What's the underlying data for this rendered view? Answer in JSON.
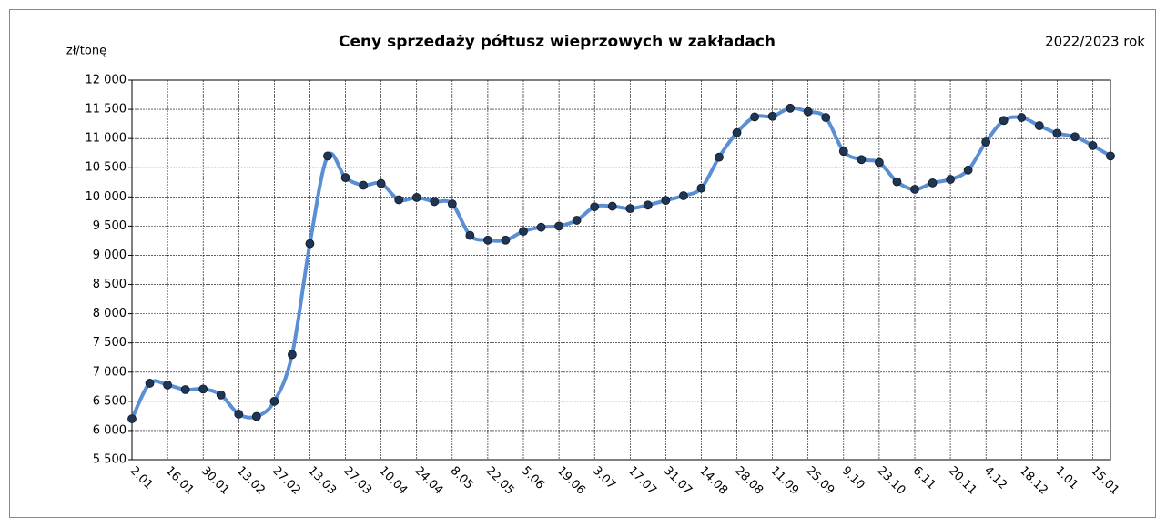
{
  "chart_data": {
    "type": "line",
    "title": "Ceny sprzedaży półtusz wieprzowych w zakładach",
    "subtitle": "2022/2023 rok",
    "y_label": "zł/tonę",
    "categories": [
      "2.01",
      null,
      "16.01",
      null,
      "30.01",
      null,
      "13.02",
      null,
      "27.02",
      null,
      "13.03",
      null,
      "27.03",
      null,
      "10.04",
      null,
      "24.04",
      null,
      "8.05",
      null,
      "22.05",
      null,
      "5.06",
      null,
      "19.06",
      null,
      "3.07",
      null,
      "17.07",
      null,
      "31.07",
      null,
      "14.08",
      null,
      "28.08",
      null,
      "11.09",
      null,
      "25.09",
      null,
      "9.10",
      null,
      "23.10",
      null,
      "6.11",
      null,
      "20.11",
      null,
      "4.12",
      null,
      "18.12",
      null,
      "1.01",
      null,
      "15.01",
      null
    ],
    "values": [
      6200,
      6810,
      6780,
      6700,
      6710,
      6610,
      6280,
      6240,
      6500,
      7300,
      9200,
      10700,
      10330,
      10200,
      10230,
      9950,
      9990,
      9920,
      9880,
      9340,
      9260,
      9260,
      9410,
      9480,
      9500,
      9600,
      9830,
      9840,
      9800,
      9860,
      9940,
      10020,
      10150,
      10680,
      11100,
      11370,
      11380,
      11520,
      11460,
      11360,
      10780,
      10640,
      10590,
      10260,
      10130,
      10240,
      10300,
      10460,
      10940,
      11310,
      11360,
      11220,
      11090,
      11030,
      10880,
      10700
    ],
    "color": "#5b8fd4",
    "marker_color": "#1f3552",
    "ylim": [
      5500,
      12000
    ],
    "yticks": [
      {
        "value": 5500,
        "label": "5 500"
      },
      {
        "value": 6000,
        "label": "6 000"
      },
      {
        "value": 6500,
        "label": "6 500"
      },
      {
        "value": 7000,
        "label": "7 000"
      },
      {
        "value": 7500,
        "label": "7 500"
      },
      {
        "value": 8000,
        "label": "8 000"
      },
      {
        "value": 8500,
        "label": "8 500"
      },
      {
        "value": 9000,
        "label": "9 000"
      },
      {
        "value": 9500,
        "label": "9 500"
      },
      {
        "value": 10000,
        "label": "10 000"
      },
      {
        "value": 10500,
        "label": "10 500"
      },
      {
        "value": 11000,
        "label": "11 000"
      },
      {
        "value": 11500,
        "label": "11 500"
      },
      {
        "value": 12000,
        "label": "12 000"
      }
    ],
    "grid": true
  }
}
